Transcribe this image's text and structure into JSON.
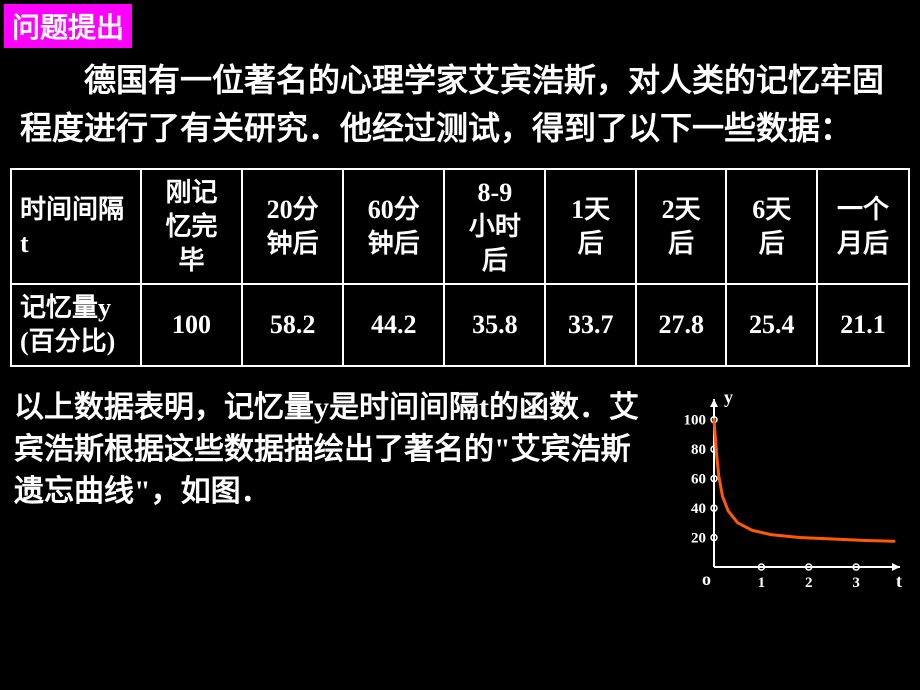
{
  "header": {
    "badge": "问题提出"
  },
  "intro": "德国有一位著名的心理学家艾宾浩斯，对人类的记忆牢固程度进行了有关研究．他经过测试，得到了以下一些数据：",
  "table": {
    "columns": [
      "时间间隔 t",
      "刚记忆完毕",
      "20分钟后",
      "60分钟后",
      "8-9小时后",
      "1天后",
      "2天后",
      "6天后",
      "一个月后"
    ],
    "row_label": "记忆量y (百分比)",
    "values": [
      "100",
      "58.2",
      "44.2",
      "35.8",
      "33.7",
      "27.8",
      "25.4",
      "21.1"
    ]
  },
  "conclusion": "以上数据表明，记忆量y是时间间隔t的函数．艾宾浩斯根据这些数据描绘出了著名的\"艾宾浩斯遗忘曲线\"，如图．",
  "chart": {
    "type": "line",
    "xlabel": "t",
    "ylabel": "y",
    "origin_label": "o",
    "y_ticks": [
      20,
      40,
      60,
      80,
      100
    ],
    "x_ticks": [
      1,
      2,
      3
    ],
    "xlim": [
      0,
      3.8
    ],
    "ylim": [
      0,
      110
    ],
    "curve_points": [
      [
        0.0,
        100
      ],
      [
        0.05,
        78
      ],
      [
        0.1,
        62
      ],
      [
        0.18,
        48
      ],
      [
        0.3,
        38
      ],
      [
        0.5,
        30
      ],
      [
        0.8,
        25
      ],
      [
        1.2,
        22
      ],
      [
        1.8,
        20
      ],
      [
        2.5,
        19
      ],
      [
        3.2,
        18
      ],
      [
        3.8,
        17.5
      ]
    ],
    "curve_color": "#ff5a00",
    "curve_width": 3,
    "axis_color": "#ffffff",
    "tick_label_color": "#ffffff",
    "tick_marker_color": "#ffffff",
    "background_color": "#000000",
    "label_fontsize": 18,
    "tick_fontsize": 15
  }
}
